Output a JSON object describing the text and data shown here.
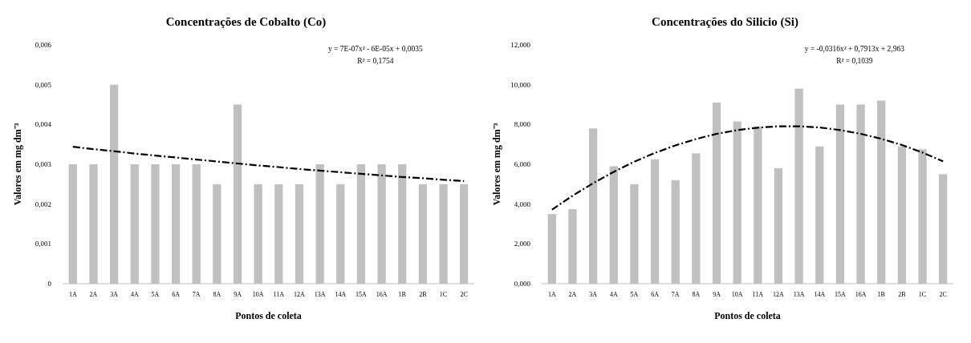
{
  "chart_data": [
    {
      "type": "bar",
      "title": "Concentrações de Cobalto (Co)",
      "xlabel": "Pontos de coleta",
      "ylabel": "Valores em mg dm⁻³",
      "categories": [
        "1A",
        "2A",
        "3A",
        "4A",
        "5A",
        "6A",
        "7A",
        "8A",
        "9A",
        "10A",
        "11A",
        "12A",
        "13A",
        "14A",
        "15A",
        "16A",
        "1B",
        "2B",
        "1C",
        "2C"
      ],
      "series": [
        {
          "color": "#c0c0c0",
          "values": [
            0.003,
            0.003,
            0.005,
            0.003,
            0.003,
            0.003,
            0.003,
            0.0025,
            0.0045,
            0.0025,
            0.0025,
            0.0025,
            0.003,
            0.0025,
            0.003,
            0.003,
            0.003,
            0.0025,
            0.0025,
            0.0025
          ]
        },
        {
          "type": "line",
          "color": "#000000",
          "line_style": "dashed",
          "values": [
            0.00344,
            0.00338,
            0.00333,
            0.00327,
            0.00322,
            0.00317,
            0.00312,
            0.00307,
            0.00302,
            0.00297,
            0.00293,
            0.00288,
            0.00284,
            0.0028,
            0.00276,
            0.00272,
            0.00268,
            0.00265,
            0.00261,
            0.00258
          ]
        }
      ],
      "ylim": [
        0,
        0.006
      ],
      "yticks": [
        0,
        {
          "value": 0.001,
          "label": "0,001"
        },
        {
          "value": 0.002,
          "label": "0,002"
        },
        {
          "value": 0.003,
          "label": "0,003"
        },
        {
          "value": 0.004,
          "label": "0,004"
        },
        {
          "value": 0.005,
          "label": "0,005"
        },
        {
          "value": 0.006,
          "label": "0,006"
        }
      ],
      "annotations": [
        "y = 7E-07x² - 6E-05x + 0,0035",
        "R² = 0,1754"
      ]
    },
    {
      "type": "bar",
      "title": "Concentrações do Silicio (Si)",
      "xlabel": "Pontos de coleta",
      "ylabel": "Valores em mg dm⁻³",
      "categories": [
        "1A",
        "2A",
        "3A",
        "4A",
        "5A",
        "6A",
        "7A",
        "8A",
        "9A",
        "10A",
        "11A",
        "12A",
        "13A",
        "14A",
        "15A",
        "16A",
        "1B",
        "2B",
        "1C",
        "2C"
      ],
      "series": [
        {
          "color": "#c0c0c0",
          "values": [
            3.5,
            3.75,
            7.8,
            5.9,
            5.0,
            6.25,
            5.2,
            6.55,
            9.1,
            8.15,
            7.9,
            5.8,
            9.8,
            6.9,
            9.0,
            9.0,
            9.2,
            6.9,
            6.75,
            5.5
          ]
        },
        {
          "type": "line",
          "color": "#000000",
          "line_style": "dashed",
          "values": [
            3.72,
            4.42,
            5.05,
            5.62,
            6.13,
            6.57,
            6.95,
            7.27,
            7.53,
            7.72,
            7.84,
            7.91,
            7.91,
            7.85,
            7.72,
            7.53,
            7.28,
            6.97,
            6.59,
            6.15
          ]
        }
      ],
      "ylim": [
        0,
        12
      ],
      "yticks": [
        {
          "value": 0,
          "label": "0,000"
        },
        {
          "value": 2,
          "label": "2,000"
        },
        {
          "value": 4,
          "label": "4,000"
        },
        {
          "value": 6,
          "label": "6,000"
        },
        {
          "value": 8,
          "label": "8,000"
        },
        {
          "value": 10,
          "label": "10,000"
        },
        {
          "value": 12,
          "label": "12,000"
        }
      ],
      "annotations": [
        "y = -0,0316x² + 0,7913x + 2,963",
        "R² = 0,1039"
      ]
    }
  ]
}
